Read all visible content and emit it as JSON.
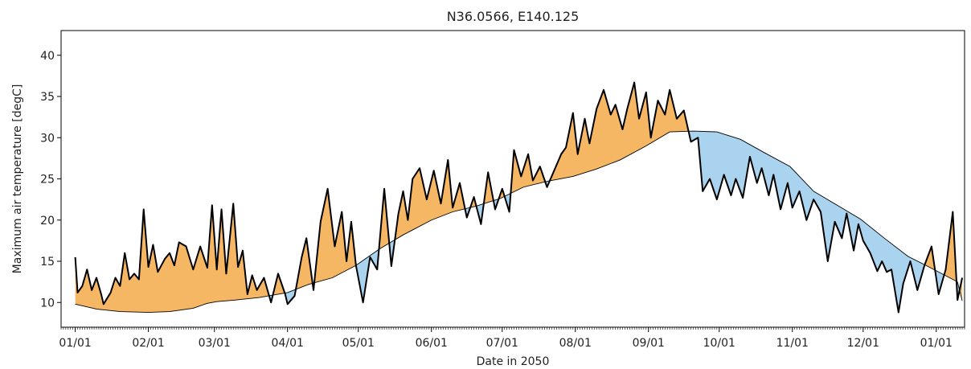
{
  "chart_data": {
    "type": "area",
    "title": "N36.0566, E140.125",
    "xlabel": "Date in 2050",
    "ylabel": "Maximum air temperature [degC]",
    "ylim": [
      7,
      43
    ],
    "xlim": [
      "2049-12-26",
      "2051-01-13"
    ],
    "grid": false,
    "x_tick_labels": [
      "01/01",
      "02/01",
      "03/01",
      "04/01",
      "05/01",
      "06/01",
      "07/01",
      "08/01",
      "09/01",
      "10/01",
      "11/01",
      "12/01",
      "01/01"
    ],
    "x_tick_dates": [
      "2050-01-01",
      "2050-02-01",
      "2050-03-01",
      "2050-04-01",
      "2050-05-01",
      "2050-06-01",
      "2050-07-01",
      "2050-08-01",
      "2050-09-01",
      "2050-10-01",
      "2050-11-01",
      "2050-12-01",
      "2051-01-01"
    ],
    "y_ticks": [
      10,
      15,
      20,
      25,
      30,
      35,
      40
    ],
    "fill_above_color": "#f5b763",
    "fill_below_color": "#a9d3ee",
    "series": [
      {
        "role": "daily",
        "color": "#000000",
        "points": [
          [
            "2050-01-01",
            15.5
          ],
          [
            "2050-01-02",
            11.2
          ],
          [
            "2050-01-04",
            12.0
          ],
          [
            "2050-01-06",
            14.0
          ],
          [
            "2050-01-08",
            11.5
          ],
          [
            "2050-01-10",
            13.0
          ],
          [
            "2050-01-12",
            11.0
          ],
          [
            "2050-01-13",
            9.8
          ],
          [
            "2050-01-16",
            11.2
          ],
          [
            "2050-01-18",
            13.0
          ],
          [
            "2050-01-20",
            12.0
          ],
          [
            "2050-01-22",
            16.0
          ],
          [
            "2050-01-24",
            12.8
          ],
          [
            "2050-01-26",
            13.5
          ],
          [
            "2050-01-28",
            12.8
          ],
          [
            "2050-01-30",
            21.3
          ],
          [
            "2050-02-01",
            14.3
          ],
          [
            "2050-02-03",
            17.0
          ],
          [
            "2050-02-05",
            13.7
          ],
          [
            "2050-02-08",
            15.3
          ],
          [
            "2050-02-10",
            16.0
          ],
          [
            "2050-02-12",
            14.5
          ],
          [
            "2050-02-14",
            17.3
          ],
          [
            "2050-02-17",
            16.8
          ],
          [
            "2050-02-20",
            14.0
          ],
          [
            "2050-02-23",
            16.8
          ],
          [
            "2050-02-26",
            14.2
          ],
          [
            "2050-02-28",
            21.8
          ],
          [
            "2050-03-02",
            14.0
          ],
          [
            "2050-03-04",
            21.3
          ],
          [
            "2050-03-06",
            13.5
          ],
          [
            "2050-03-09",
            22.0
          ],
          [
            "2050-03-11",
            14.3
          ],
          [
            "2050-03-13",
            16.3
          ],
          [
            "2050-03-15",
            11.0
          ],
          [
            "2050-03-17",
            13.3
          ],
          [
            "2050-03-19",
            11.5
          ],
          [
            "2050-03-22",
            13.0
          ],
          [
            "2050-03-25",
            10.0
          ],
          [
            "2050-03-28",
            13.5
          ],
          [
            "2050-03-31",
            11.0
          ],
          [
            "2050-04-01",
            9.8
          ],
          [
            "2050-04-04",
            10.8
          ],
          [
            "2050-04-07",
            15.5
          ],
          [
            "2050-04-09",
            17.8
          ],
          [
            "2050-04-12",
            11.5
          ],
          [
            "2050-04-15",
            19.8
          ],
          [
            "2050-04-18",
            23.8
          ],
          [
            "2050-04-21",
            16.8
          ],
          [
            "2050-04-24",
            21.0
          ],
          [
            "2050-04-26",
            15.0
          ],
          [
            "2050-04-28",
            19.8
          ],
          [
            "2050-04-30",
            14.5
          ],
          [
            "2050-05-03",
            10.0
          ],
          [
            "2050-05-06",
            15.5
          ],
          [
            "2050-05-09",
            14.0
          ],
          [
            "2050-05-12",
            23.8
          ],
          [
            "2050-05-15",
            14.4
          ],
          [
            "2050-05-18",
            20.8
          ],
          [
            "2050-05-20",
            23.5
          ],
          [
            "2050-05-22",
            20.0
          ],
          [
            "2050-05-24",
            25.0
          ],
          [
            "2050-05-27",
            26.3
          ],
          [
            "2050-05-30",
            22.5
          ],
          [
            "2050-06-02",
            26.0
          ],
          [
            "2050-06-05",
            22.0
          ],
          [
            "2050-06-08",
            27.3
          ],
          [
            "2050-06-10",
            21.5
          ],
          [
            "2050-06-13",
            24.5
          ],
          [
            "2050-06-16",
            20.3
          ],
          [
            "2050-06-19",
            22.8
          ],
          [
            "2050-06-22",
            19.5
          ],
          [
            "2050-06-25",
            25.8
          ],
          [
            "2050-06-28",
            21.3
          ],
          [
            "2050-07-01",
            23.8
          ],
          [
            "2050-07-04",
            21.0
          ],
          [
            "2050-07-06",
            28.5
          ],
          [
            "2050-07-09",
            25.3
          ],
          [
            "2050-07-12",
            28.0
          ],
          [
            "2050-07-14",
            24.8
          ],
          [
            "2050-07-17",
            26.5
          ],
          [
            "2050-07-20",
            24.0
          ],
          [
            "2050-07-23",
            26.0
          ],
          [
            "2050-07-26",
            28.0
          ],
          [
            "2050-07-28",
            28.8
          ],
          [
            "2050-07-31",
            33.0
          ],
          [
            "2050-08-02",
            28.0
          ],
          [
            "2050-08-05",
            32.3
          ],
          [
            "2050-08-07",
            29.3
          ],
          [
            "2050-08-10",
            33.5
          ],
          [
            "2050-08-13",
            35.8
          ],
          [
            "2050-08-16",
            32.8
          ],
          [
            "2050-08-18",
            34.0
          ],
          [
            "2050-08-21",
            31.0
          ],
          [
            "2050-08-23",
            33.5
          ],
          [
            "2050-08-26",
            36.7
          ],
          [
            "2050-08-28",
            32.3
          ],
          [
            "2050-08-31",
            35.5
          ],
          [
            "2050-09-02",
            30.0
          ],
          [
            "2050-09-05",
            34.5
          ],
          [
            "2050-09-08",
            32.8
          ],
          [
            "2050-09-10",
            35.8
          ],
          [
            "2050-09-13",
            32.3
          ],
          [
            "2050-09-16",
            33.3
          ],
          [
            "2050-09-19",
            29.5
          ],
          [
            "2050-09-22",
            30.0
          ],
          [
            "2050-09-24",
            23.5
          ],
          [
            "2050-09-27",
            25.0
          ],
          [
            "2050-09-30",
            22.5
          ],
          [
            "2050-10-03",
            25.5
          ],
          [
            "2050-10-06",
            23.0
          ],
          [
            "2050-10-08",
            25.0
          ],
          [
            "2050-10-11",
            22.7
          ],
          [
            "2050-10-14",
            27.7
          ],
          [
            "2050-10-17",
            24.5
          ],
          [
            "2050-10-19",
            26.3
          ],
          [
            "2050-10-22",
            23.0
          ],
          [
            "2050-10-24",
            25.5
          ],
          [
            "2050-10-27",
            21.3
          ],
          [
            "2050-10-30",
            24.5
          ],
          [
            "2050-11-01",
            21.5
          ],
          [
            "2050-11-04",
            23.5
          ],
          [
            "2050-11-07",
            20.0
          ],
          [
            "2050-11-10",
            22.5
          ],
          [
            "2050-11-13",
            21.0
          ],
          [
            "2050-11-16",
            15.0
          ],
          [
            "2050-11-19",
            19.8
          ],
          [
            "2050-11-22",
            17.8
          ],
          [
            "2050-11-24",
            20.8
          ],
          [
            "2050-11-27",
            16.3
          ],
          [
            "2050-11-29",
            19.5
          ],
          [
            "2050-12-01",
            17.5
          ],
          [
            "2050-12-04",
            16.0
          ],
          [
            "2050-12-07",
            13.8
          ],
          [
            "2050-12-09",
            15.0
          ],
          [
            "2050-12-11",
            13.7
          ],
          [
            "2050-12-13",
            14.0
          ],
          [
            "2050-12-16",
            8.8
          ],
          [
            "2050-12-18",
            12.3
          ],
          [
            "2050-12-21",
            15.0
          ],
          [
            "2050-12-24",
            11.5
          ],
          [
            "2050-12-27",
            14.5
          ],
          [
            "2050-12-30",
            16.8
          ],
          [
            "2051-01-02",
            11.0
          ],
          [
            "2051-01-05",
            14.0
          ],
          [
            "2051-01-08",
            21.0
          ],
          [
            "2051-01-10",
            10.3
          ],
          [
            "2051-01-12",
            13.0
          ]
        ]
      },
      {
        "role": "threshold",
        "color": "#000000",
        "points": [
          [
            "2050-01-01",
            9.8
          ],
          [
            "2050-01-10",
            9.2
          ],
          [
            "2050-01-20",
            8.9
          ],
          [
            "2050-02-01",
            8.8
          ],
          [
            "2050-02-10",
            8.9
          ],
          [
            "2050-02-20",
            9.3
          ],
          [
            "2050-02-26",
            9.9
          ],
          [
            "2050-03-02",
            10.1
          ],
          [
            "2050-03-10",
            10.3
          ],
          [
            "2050-03-20",
            10.6
          ],
          [
            "2050-04-01",
            11.2
          ],
          [
            "2050-04-10",
            12.2
          ],
          [
            "2050-04-20",
            13.0
          ],
          [
            "2050-04-30",
            14.5
          ],
          [
            "2050-05-10",
            16.5
          ],
          [
            "2050-05-20",
            18.2
          ],
          [
            "2050-06-01",
            20.0
          ],
          [
            "2050-06-10",
            21.0
          ],
          [
            "2050-06-20",
            21.7
          ],
          [
            "2050-06-30",
            22.6
          ],
          [
            "2050-07-10",
            24.0
          ],
          [
            "2050-07-20",
            24.7
          ],
          [
            "2050-07-31",
            25.3
          ],
          [
            "2050-08-10",
            26.2
          ],
          [
            "2050-08-20",
            27.3
          ],
          [
            "2050-08-31",
            29.0
          ],
          [
            "2050-09-10",
            30.7
          ],
          [
            "2050-09-20",
            30.8
          ],
          [
            "2050-09-30",
            30.7
          ],
          [
            "2050-10-10",
            29.8
          ],
          [
            "2050-10-20",
            28.2
          ],
          [
            "2050-10-31",
            26.5
          ],
          [
            "2050-11-10",
            23.5
          ],
          [
            "2050-11-20",
            21.8
          ],
          [
            "2050-11-30",
            20.1
          ],
          [
            "2050-12-10",
            17.8
          ],
          [
            "2050-12-20",
            15.6
          ],
          [
            "2050-12-31",
            14.0
          ],
          [
            "2051-01-10",
            12.5
          ],
          [
            "2051-01-12",
            10.2
          ]
        ]
      }
    ]
  }
}
